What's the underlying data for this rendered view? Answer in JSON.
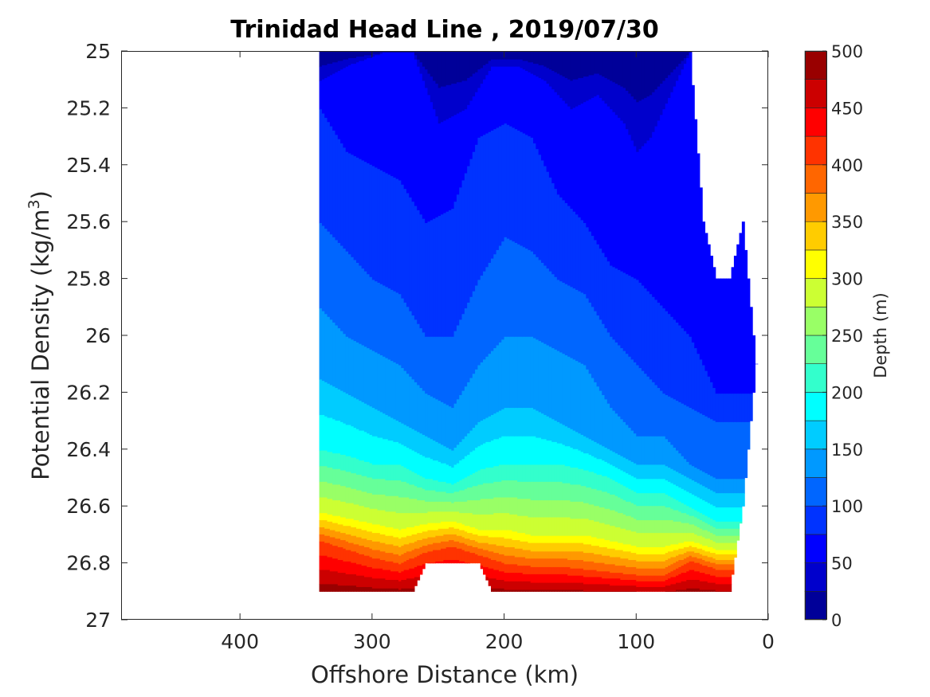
{
  "chart_data": {
    "type": "contourf",
    "title": "Trinidad Head Line , 2019/07/30",
    "xlabel": "Offshore Distance (km)",
    "ylabel": "Potential Density (kg/m³)",
    "ylabel_base": "Potential Density (kg/m",
    "ylabel_sup": "3",
    "ylabel_tail": ")",
    "colorbar_label": "Depth (m)",
    "xlim": [
      490,
      0
    ],
    "x_reversed": true,
    "ylim": [
      25,
      27
    ],
    "y_reversed": true,
    "x_ticks": [
      400,
      300,
      200,
      100,
      0
    ],
    "x_tick_labels": [
      "400",
      "300",
      "200",
      "100",
      "0"
    ],
    "y_ticks": [
      25,
      25.2,
      25.4,
      25.6,
      25.8,
      26,
      26.2,
      26.4,
      26.6,
      26.8,
      27
    ],
    "y_tick_labels": [
      "25",
      "25.2",
      "25.4",
      "25.6",
      "25.8",
      "26",
      "26.2",
      "26.4",
      "26.6",
      "26.8",
      "27"
    ],
    "colorbar_ticks": [
      0,
      50,
      100,
      150,
      200,
      250,
      300,
      350,
      400,
      450,
      500
    ],
    "colorbar_tick_labels": [
      "0",
      "50",
      "100",
      "150",
      "200",
      "250",
      "300",
      "350",
      "400",
      "450",
      "500"
    ],
    "colormap": "jet",
    "level_step": 25,
    "clim": [
      0,
      500
    ],
    "grid": false,
    "data_coverage": {
      "distance_km": [
        340,
        330,
        310,
        290,
        270,
        260,
        240,
        220,
        210,
        190,
        170,
        150,
        130,
        110,
        100,
        90,
        80,
        70,
        60,
        50,
        40,
        30,
        20,
        10
      ],
      "max_density": [
        26.9,
        26.9,
        26.9,
        26.9,
        26.9,
        26.8,
        26.8,
        26.8,
        26.9,
        26.9,
        26.9,
        26.9,
        26.9,
        26.9,
        26.9,
        26.9,
        26.9,
        26.9,
        26.9,
        26.9,
        26.9,
        26.9,
        26.6,
        26.1
      ],
      "min_density": [
        25,
        25,
        25,
        25,
        25,
        25,
        25,
        25,
        25,
        25,
        25,
        25,
        25,
        25,
        25,
        25,
        25,
        25,
        25,
        25.6,
        25.8,
        25.8,
        25.6,
        26.1
      ]
    },
    "depth_contours": [
      {
        "depth_m": 50,
        "distance_km": [
          340,
          320,
          290,
          270,
          250,
          230,
          210,
          190,
          170,
          150,
          130,
          110,
          100,
          90,
          80,
          70,
          60
        ],
        "density": [
          25.1,
          25.05,
          25.0,
          25.0,
          25.25,
          25.2,
          25.05,
          25.05,
          25.1,
          25.2,
          25.15,
          25.25,
          25.35,
          25.3,
          25.2,
          25.1,
          25.0
        ]
      },
      {
        "depth_m": 75,
        "distance_km": [
          340,
          320,
          300,
          280,
          260,
          240,
          220,
          200,
          180,
          160,
          140,
          120,
          100,
          80,
          60,
          40,
          20
        ],
        "density": [
          25.2,
          25.35,
          25.4,
          25.45,
          25.6,
          25.55,
          25.3,
          25.25,
          25.3,
          25.5,
          25.6,
          25.75,
          25.8,
          25.9,
          26.0,
          26.2,
          26.2
        ]
      },
      {
        "depth_m": 100,
        "distance_km": [
          340,
          320,
          300,
          280,
          260,
          240,
          220,
          200,
          180,
          160,
          140,
          120,
          100,
          80,
          60,
          40,
          20
        ],
        "density": [
          25.6,
          25.7,
          25.8,
          25.85,
          26.0,
          26.0,
          25.8,
          25.65,
          25.7,
          25.8,
          25.85,
          26.0,
          26.1,
          26.2,
          26.25,
          26.3,
          26.3
        ]
      },
      {
        "depth_m": 125,
        "distance_km": [
          340,
          320,
          300,
          280,
          260,
          240,
          220,
          200,
          180,
          160,
          140,
          120,
          100,
          80,
          60,
          40,
          20
        ],
        "density": [
          25.9,
          26.0,
          26.05,
          26.1,
          26.2,
          26.25,
          26.1,
          26.0,
          26.0,
          26.05,
          26.1,
          26.25,
          26.35,
          26.35,
          26.45,
          26.5,
          26.5
        ]
      },
      {
        "depth_m": 150,
        "distance_km": [
          340,
          320,
          300,
          280,
          260,
          240,
          220,
          200,
          180,
          160,
          140,
          120,
          100,
          80,
          60,
          40,
          20
        ],
        "density": [
          26.15,
          26.2,
          26.25,
          26.3,
          26.35,
          26.4,
          26.3,
          26.25,
          26.25,
          26.3,
          26.35,
          26.4,
          26.45,
          26.45,
          26.5,
          26.55,
          26.55
        ]
      },
      {
        "depth_m": 200,
        "distance_km": [
          340,
          320,
          300,
          280,
          260,
          240,
          220,
          200,
          180,
          160,
          140,
          120,
          100,
          80,
          60,
          40,
          20
        ],
        "density": [
          26.4,
          26.42,
          26.45,
          26.45,
          26.5,
          26.52,
          26.47,
          26.45,
          26.45,
          26.45,
          26.47,
          26.5,
          26.55,
          26.55,
          26.6,
          26.65,
          26.65
        ]
      },
      {
        "depth_m": 300,
        "distance_km": [
          340,
          320,
          300,
          280,
          260,
          240,
          220,
          200,
          180,
          160,
          140,
          120,
          100,
          80,
          60,
          40
        ],
        "density": [
          26.62,
          26.64,
          26.66,
          26.68,
          26.66,
          26.65,
          26.68,
          26.68,
          26.7,
          26.7,
          26.7,
          26.72,
          26.74,
          26.74,
          26.72,
          26.75
        ]
      },
      {
        "depth_m": 400,
        "distance_km": [
          340,
          320,
          300,
          280,
          260,
          240,
          220,
          200,
          180,
          160,
          140,
          120,
          100,
          80,
          60,
          40
        ],
        "density": [
          26.72,
          26.75,
          26.78,
          26.8,
          26.76,
          26.74,
          26.77,
          26.8,
          26.81,
          26.81,
          26.82,
          26.83,
          26.84,
          26.84,
          26.79,
          26.82
        ]
      }
    ]
  }
}
